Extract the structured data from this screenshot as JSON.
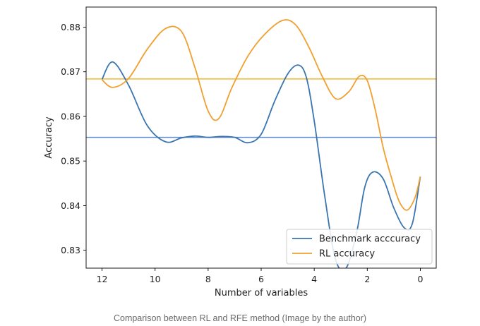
{
  "chart_data": {
    "type": "line",
    "xlabel": "Number of variables",
    "ylabel": "Accuracy",
    "x_axis_inverted": true,
    "xlim": [
      12.6,
      -0.6
    ],
    "ylim": [
      0.826,
      0.8845
    ],
    "xticks": [
      12,
      10,
      8,
      6,
      4,
      2,
      0
    ],
    "yticks": [
      0.83,
      0.84,
      0.85,
      0.86,
      0.87,
      0.88
    ],
    "ytick_labels": [
      "0.83",
      "0.84",
      "0.85",
      "0.86",
      "0.87",
      "0.88"
    ],
    "grid": false,
    "legend_position": "lower-right",
    "series": [
      {
        "name": "Benchmark acccuracy",
        "color": "#3a75b0",
        "x": [
          12,
          11.6,
          11,
          10.3,
          9.6,
          9,
          8.5,
          8,
          7.5,
          7,
          6.5,
          6,
          5.5,
          5,
          4.6,
          4.3,
          4,
          3.6,
          3.2,
          2.8,
          2.4,
          2.1,
          1.8,
          1.4,
          1,
          0.6,
          0.3,
          0
        ],
        "values": [
          0.8683,
          0.8722,
          0.867,
          0.858,
          0.8543,
          0.8552,
          0.8556,
          0.8553,
          0.8555,
          0.8553,
          0.8541,
          0.856,
          0.8633,
          0.8695,
          0.8715,
          0.8688,
          0.859,
          0.842,
          0.828,
          0.826,
          0.834,
          0.844,
          0.8475,
          0.846,
          0.8395,
          0.835,
          0.836,
          0.8465
        ]
      },
      {
        "name": "RL accuracy",
        "color": "#f0a030",
        "x": [
          12,
          11.6,
          11,
          10.3,
          9.6,
          9,
          8.5,
          8,
          7.6,
          7.1,
          6.5,
          5.9,
          5.2,
          4.7,
          4.2,
          3.7,
          3.2,
          2.7,
          2.3,
          2.0,
          1.7,
          1.4,
          1.1,
          0.8,
          0.5,
          0.2,
          0
        ],
        "values": [
          0.8682,
          0.8665,
          0.8685,
          0.875,
          0.8797,
          0.879,
          0.871,
          0.8612,
          0.8595,
          0.8665,
          0.8735,
          0.8782,
          0.8815,
          0.8805,
          0.8755,
          0.869,
          0.864,
          0.8655,
          0.869,
          0.868,
          0.8615,
          0.853,
          0.8465,
          0.841,
          0.839,
          0.8418,
          0.8465
        ]
      }
    ],
    "reference_lines": [
      {
        "color": "#5a8ad0",
        "y": 0.8553
      },
      {
        "color": "#f2b830",
        "y": 0.8684
      }
    ]
  },
  "caption": "Comparison between RL and RFE method (Image by the author)"
}
